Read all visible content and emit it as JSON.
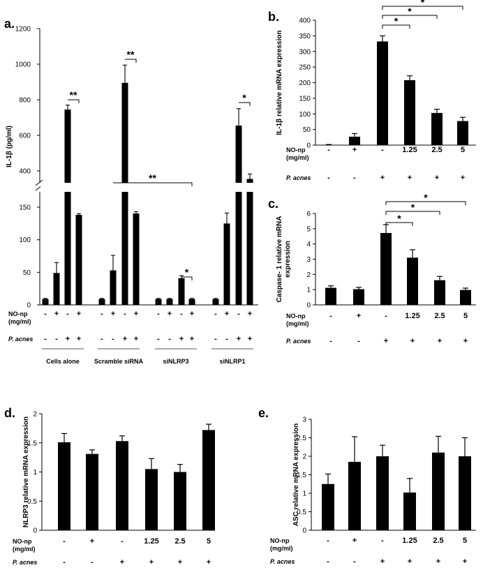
{
  "panels": {
    "a": "a.",
    "b": "b.",
    "c": "c.",
    "d": "d.",
    "e": "e."
  },
  "chart_data": [
    {
      "id": "a",
      "type": "bar",
      "ylabel": "IL-1β (pg/ml)",
      "y_break": true,
      "lower_ticks": [
        0,
        50,
        100,
        150
      ],
      "upper_ticks": [
        400,
        600,
        800,
        1000,
        1200
      ],
      "rows": [
        {
          "label": "NO-np",
          "label2": "(mg/ml)",
          "italic": false,
          "values": [
            "-",
            "+",
            "-",
            "+",
            "-",
            "+",
            "-",
            "+",
            "-",
            "+",
            "-",
            "+",
            "-",
            "+",
            "-",
            "+"
          ]
        },
        {
          "label": "P. acnes",
          "italic": true,
          "values": [
            "-",
            "-",
            "+",
            "+",
            "-",
            "-",
            "+",
            "+",
            "-",
            "-",
            "+",
            "+",
            "-",
            "-",
            "+",
            "+"
          ]
        }
      ],
      "groups": [
        "Cells alone",
        "Scramble siRNA",
        "siNLRP3",
        "siNLRP1"
      ],
      "values": [
        9,
        49,
        745,
        153,
        9,
        53,
        895,
        161,
        9,
        9,
        41,
        9,
        9,
        125,
        655,
        355
      ],
      "errors": [
        1,
        16,
        25,
        7,
        1,
        23,
        100,
        10,
        1,
        1,
        4,
        1,
        1,
        16,
        95,
        28
      ],
      "annotations": [
        "**",
        "**",
        "**",
        "*",
        "*"
      ]
    },
    {
      "id": "b",
      "type": "bar",
      "ylabel": "IL-1β  relative mRNA expression",
      "ylim": [
        0,
        400
      ],
      "yticks": [
        0,
        50,
        100,
        150,
        200,
        250,
        300,
        350,
        400
      ],
      "rows": [
        {
          "label": "NO-np",
          "label2": "(mg/ml)",
          "italic": false,
          "values": [
            "-",
            "+",
            "-",
            "1.25",
            "2.5",
            "5"
          ]
        },
        {
          "label": "P. acnes",
          "italic": true,
          "values": [
            "-",
            "-",
            "+",
            "+",
            "+",
            "+"
          ]
        }
      ],
      "values": [
        1,
        27,
        332,
        208,
        103,
        77
      ],
      "errors": [
        1,
        10,
        18,
        14,
        12,
        12
      ],
      "annotations": [
        "*",
        "*",
        "*"
      ]
    },
    {
      "id": "c",
      "type": "bar",
      "ylabel": "Caspase- 1 relative mRNA expression",
      "ylim": [
        0,
        6
      ],
      "yticks": [
        0,
        1,
        2,
        3,
        4,
        5,
        6
      ],
      "rows": [
        {
          "label": "NO-np",
          "label2": "(mg/ml)",
          "italic": false,
          "values": [
            "-",
            "+",
            "-",
            "1.25",
            "2.5",
            "5"
          ]
        },
        {
          "label": "P. acnes",
          "italic": true,
          "values": [
            "-",
            "-",
            "+",
            "+",
            "+",
            "+"
          ]
        }
      ],
      "values": [
        1.12,
        1.03,
        4.72,
        3.1,
        1.62,
        0.98
      ],
      "errors": [
        0.13,
        0.12,
        0.55,
        0.52,
        0.25,
        0.12
      ],
      "annotations": [
        "*",
        "*",
        "*"
      ]
    },
    {
      "id": "d",
      "type": "bar",
      "ylabel": "NLRP3  relative mRNA expression",
      "ylim": [
        0,
        2
      ],
      "yticks": [
        0,
        0.5,
        1,
        1.5,
        2
      ],
      "ytick_labels": [
        "0",
        "0.5",
        "1",
        "1.5",
        "2"
      ],
      "rows": [
        {
          "label": "NO-np",
          "label2": "(mg/ml)",
          "italic": false,
          "values": [
            "-",
            "+",
            "-",
            "1.25",
            "2.5",
            "5"
          ]
        },
        {
          "label": "P. acnes",
          "italic": true,
          "values": [
            "-",
            "-",
            "+",
            "+",
            "+",
            "+"
          ]
        }
      ],
      "values": [
        1.51,
        1.31,
        1.53,
        1.05,
        1.0,
        1.72
      ],
      "errors": [
        0.15,
        0.07,
        0.09,
        0.18,
        0.13,
        0.1
      ]
    },
    {
      "id": "e",
      "type": "bar",
      "ylabel": "ASC relative mRNA expression",
      "ylim": [
        0,
        3
      ],
      "yticks": [
        0,
        0.5,
        1,
        1.5,
        2,
        2.5,
        3
      ],
      "ytick_labels": [
        "0",
        "0.5",
        "1",
        "1.5",
        "2",
        "2.5",
        "3"
      ],
      "rows": [
        {
          "label": "NO-np",
          "label2": "(mg/ml)",
          "italic": false,
          "values": [
            "-",
            "+",
            "-",
            "1.25",
            "2.5",
            "5"
          ]
        },
        {
          "label": "P. acnes",
          "italic": true,
          "values": [
            "-",
            "-",
            "+",
            "+",
            "+",
            "+"
          ]
        }
      ],
      "values": [
        1.25,
        1.85,
        2.0,
        1.02,
        2.1,
        2.0
      ],
      "errors": [
        0.27,
        0.68,
        0.3,
        0.38,
        0.44,
        0.5
      ]
    }
  ]
}
